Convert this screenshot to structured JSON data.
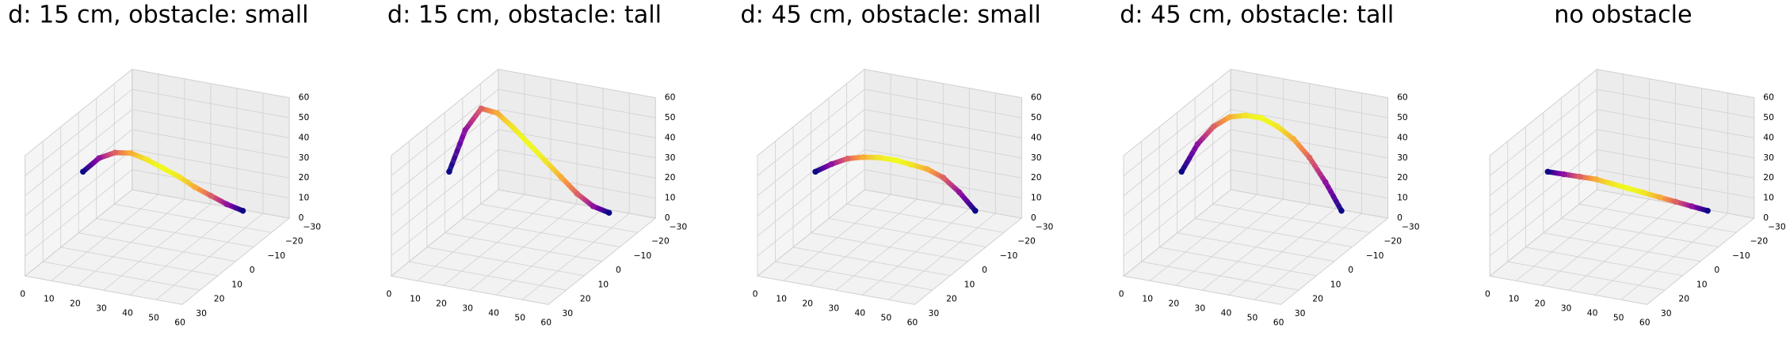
{
  "chart_data": [
    {
      "type": "scatter3d",
      "title": "d: 15 cm, obstacle: small",
      "colormap": "plasma",
      "x": [
        1,
        5.4,
        9.8,
        14.2,
        18.6,
        23,
        27.4,
        31.8,
        36.2,
        40.6,
        45
      ],
      "y": [
        -1,
        -3.5,
        -6,
        -8.5,
        -11,
        -13.5,
        -16,
        -18.5,
        -21,
        -23.5,
        -26
      ],
      "z": [
        30,
        36,
        38,
        37,
        33,
        28,
        23,
        17,
        12,
        7,
        3
      ],
      "xlim": [
        0,
        60
      ],
      "ylim": [
        -30,
        30
      ],
      "zlim": [
        0,
        60
      ],
      "xticks": [
        0,
        10,
        20,
        30,
        40,
        50,
        60
      ],
      "yticks": [
        {
          "value": -30,
          "label": "−30"
        },
        {
          "value": -20,
          "label": "−20"
        },
        {
          "value": -10,
          "label": "−10"
        },
        0,
        10,
        20,
        30
      ],
      "zticks": [
        0,
        10,
        20,
        30,
        40,
        50,
        60
      ]
    },
    {
      "type": "scatter3d",
      "title": "d: 15 cm, obstacle: tall",
      "colormap": "plasma",
      "x": [
        1,
        5.4,
        9.8,
        14.2,
        18.6,
        23,
        27.4,
        31.8,
        36.2,
        40.6,
        45
      ],
      "y": [
        -1,
        -3.5,
        -6,
        -8.5,
        -11,
        -13.5,
        -16,
        -18.5,
        -21,
        -23.5,
        -26
      ],
      "z": [
        30,
        50,
        60,
        57,
        49,
        40,
        31,
        22,
        13,
        6,
        2
      ],
      "xlim": [
        0,
        60
      ],
      "ylim": [
        -30,
        30
      ],
      "zlim": [
        0,
        60
      ],
      "xticks": [
        0,
        10,
        20,
        30,
        40,
        50,
        60
      ],
      "yticks": [
        {
          "value": -30,
          "label": "−30"
        },
        {
          "value": -20,
          "label": "−20"
        },
        {
          "value": -10,
          "label": "−10"
        },
        0,
        10,
        20,
        30
      ],
      "zticks": [
        0,
        10,
        20,
        30,
        40,
        50,
        60
      ]
    },
    {
      "type": "scatter3d",
      "title": "d: 45 cm, obstacle: small",
      "colormap": "plasma",
      "x": [
        1,
        5.4,
        9.8,
        14.2,
        18.6,
        23,
        27.4,
        31.8,
        36.2,
        40.6,
        45
      ],
      "y": [
        -1,
        -3.5,
        -6,
        -8.5,
        -11,
        -13.5,
        -16,
        -18.5,
        -21,
        -23.5,
        -26
      ],
      "z": [
        30,
        33,
        35,
        35,
        34,
        32,
        29,
        26,
        21,
        13,
        3
      ],
      "xlim": [
        0,
        60
      ],
      "ylim": [
        -30,
        30
      ],
      "zlim": [
        0,
        60
      ],
      "xticks": [
        0,
        10,
        20,
        30,
        40,
        50,
        60
      ],
      "yticks": [
        {
          "value": -30,
          "label": "−30"
        },
        {
          "value": -20,
          "label": "−20"
        },
        {
          "value": -10,
          "label": "−10"
        },
        0,
        10,
        20,
        30
      ],
      "zticks": [
        0,
        10,
        20,
        30,
        40,
        50,
        60
      ]
    },
    {
      "type": "scatter3d",
      "title": "d: 45 cm, obstacle: tall",
      "colormap": "plasma",
      "x": [
        1,
        5.4,
        9.8,
        14.2,
        18.6,
        23,
        27.4,
        31.8,
        36.2,
        40.6,
        45
      ],
      "y": [
        -1,
        -3.5,
        -6,
        -8.5,
        -11,
        -13.5,
        -16,
        -18.5,
        -21,
        -23.5,
        -26
      ],
      "z": [
        30,
        43,
        51,
        55,
        55,
        53,
        48,
        41,
        31,
        18,
        3
      ],
      "xlim": [
        0,
        60
      ],
      "ylim": [
        -30,
        30
      ],
      "zlim": [
        0,
        60
      ],
      "xticks": [
        0,
        10,
        20,
        30,
        40,
        50,
        60
      ],
      "yticks": [
        {
          "value": -30,
          "label": "−30"
        },
        {
          "value": -20,
          "label": "−20"
        },
        {
          "value": -10,
          "label": "−10"
        },
        0,
        10,
        20,
        30
      ],
      "zticks": [
        0,
        10,
        20,
        30,
        40,
        50,
        60
      ]
    },
    {
      "type": "scatter3d",
      "title": "no obstacle",
      "colormap": "plasma",
      "x": [
        1,
        5.4,
        9.8,
        14.2,
        18.6,
        23,
        27.4,
        31.8,
        36.2,
        40.6,
        45
      ],
      "y": [
        -1,
        -3.5,
        -6,
        -8.5,
        -11,
        -13.5,
        -16,
        -18.5,
        -21,
        -23.5,
        -26
      ],
      "z": [
        30,
        28,
        26,
        24,
        21,
        18,
        15,
        12,
        9,
        6,
        3
      ],
      "xlim": [
        0,
        60
      ],
      "ylim": [
        -30,
        30
      ],
      "zlim": [
        0,
        60
      ],
      "xticks": [
        0,
        10,
        20,
        30,
        40,
        50,
        60
      ],
      "yticks": [
        {
          "value": -30,
          "label": "−30"
        },
        {
          "value": -20,
          "label": "−20"
        },
        {
          "value": -10,
          "label": "−10"
        },
        0,
        10,
        20,
        30
      ],
      "zticks": [
        0,
        10,
        20,
        30,
        40,
        50,
        60
      ]
    }
  ]
}
